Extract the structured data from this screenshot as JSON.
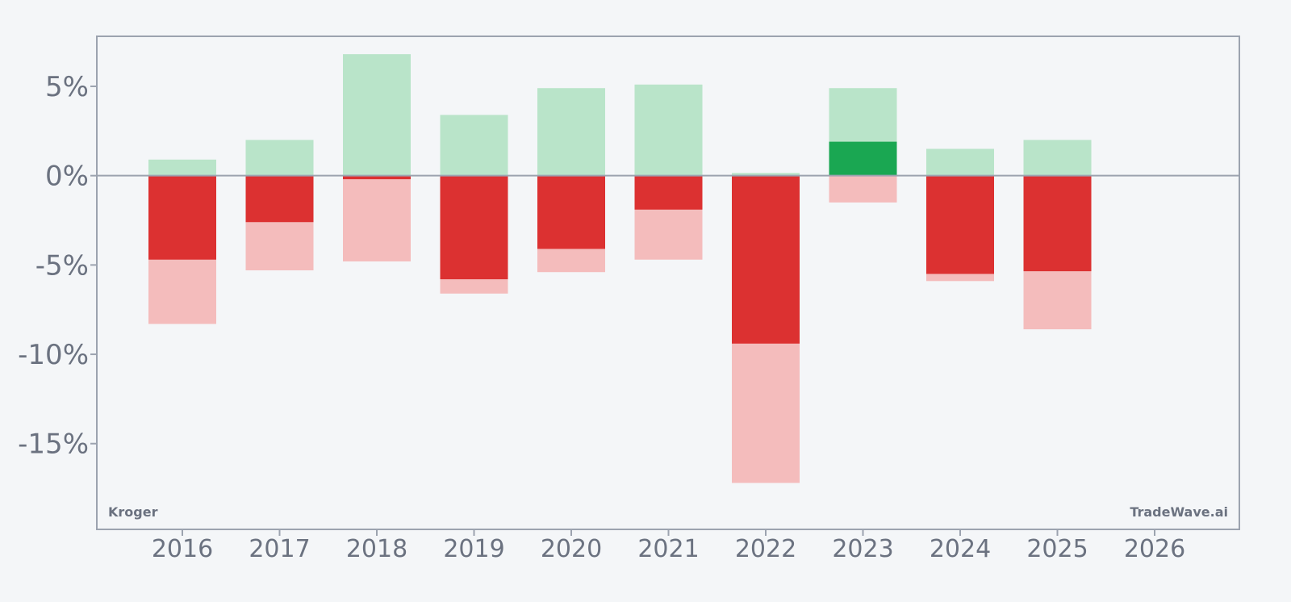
{
  "brand_label": "Kroger",
  "source_label": "TradeWave.ai",
  "colors": {
    "background": "#f4f6f8",
    "frame": "#9ca3af",
    "axis_text": "#6b7280",
    "up_range": "#b9e4c9",
    "down_range": "#f4bcbc",
    "close_negative": "#dc3131",
    "close_positive": "#1aa752"
  },
  "chart_data": {
    "type": "bar",
    "title": "",
    "xlabel": "",
    "ylabel": "",
    "categories": [
      "2016",
      "2017",
      "2018",
      "2019",
      "2020",
      "2021",
      "2022",
      "2023",
      "2024",
      "2025",
      "2026"
    ],
    "ylim": [
      -19.8,
      7.8
    ],
    "yticks": [
      5,
      0,
      -5,
      -10,
      -15
    ],
    "ytick_labels": [
      "5%",
      "0%",
      "-5%",
      "-10%",
      "-15%"
    ],
    "grid": false,
    "series": [
      {
        "values": [
          0.9,
          2.0,
          6.8,
          3.4,
          4.9,
          5.1,
          0.15,
          4.9,
          1.5,
          2.0,
          null
        ]
      },
      {
        "values": [
          -8.3,
          -5.3,
          -4.8,
          -6.6,
          -5.4,
          -4.7,
          -17.2,
          -1.5,
          -5.9,
          -8.6,
          null
        ]
      },
      {
        "values": [
          -4.7,
          -2.6,
          -0.2,
          -5.8,
          -4.1,
          -1.9,
          -9.4,
          1.9,
          -5.5,
          -5.35,
          null
        ]
      }
    ]
  }
}
